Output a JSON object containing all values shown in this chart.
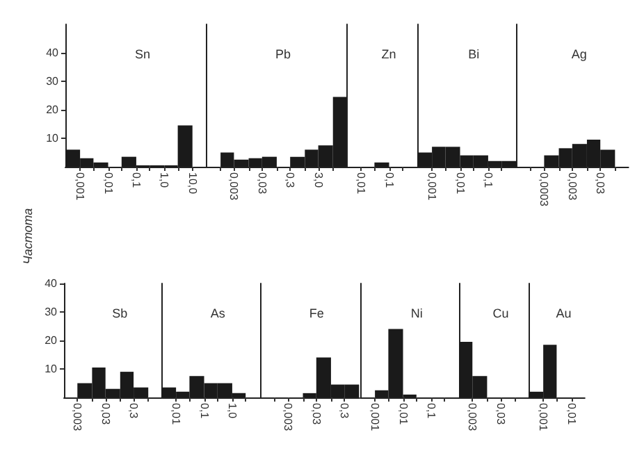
{
  "chart_data": [
    {
      "type": "histogram",
      "title": "Sn",
      "log": "x",
      "color": "#1a1a1a",
      "xlim": [
        0.0003,
        30
      ],
      "ylim": [
        0,
        50
      ],
      "yticks": [
        10,
        20,
        30,
        40
      ],
      "bins": [
        0.0003,
        0.001,
        0.003,
        0.01,
        0.03,
        0.1,
        0.3,
        1,
        3,
        10
      ],
      "values": [
        6,
        3,
        1.5,
        0,
        3.5,
        0.5,
        0.5,
        0.5,
        14.5
      ],
      "xticks": [
        {
          "value": 0.001,
          "label": "0,001"
        },
        {
          "value": 0.003,
          "label": null
        },
        {
          "value": 0.01,
          "label": "0,01"
        },
        {
          "value": 0.03,
          "label": null
        },
        {
          "value": 0.1,
          "label": "0,1"
        },
        {
          "value": 0.3,
          "label": null
        },
        {
          "value": 1,
          "label": "1,0"
        },
        {
          "value": 3,
          "label": null
        },
        {
          "value": 10,
          "label": "10,0"
        }
      ]
    },
    {
      "type": "histogram",
      "title": "Pb",
      "log": "x",
      "color": "#1a1a1a",
      "tick_labels": "x",
      "xlim": [
        0.0003,
        30
      ],
      "ylim": [
        0,
        50
      ],
      "bins": [
        0.001,
        0.003,
        0.01,
        0.03,
        0.1,
        0.3,
        1,
        3,
        10,
        30
      ],
      "values": [
        5,
        2.5,
        3,
        3.5,
        0,
        3.5,
        6,
        7.5,
        24.5
      ],
      "xticks": [
        {
          "value": 0.001,
          "label": null
        },
        {
          "value": 0.003,
          "label": "0,003"
        },
        {
          "value": 0.01,
          "label": null
        },
        {
          "value": 0.03,
          "label": "0,03"
        },
        {
          "value": 0.1,
          "label": null
        },
        {
          "value": 0.3,
          "label": "0,3"
        },
        {
          "value": 1,
          "label": null
        },
        {
          "value": 3,
          "label": "3,0"
        },
        {
          "value": 10,
          "label": null
        }
      ]
    },
    {
      "type": "histogram",
      "title": "Zn",
      "log": "x",
      "color": "#1a1a1a",
      "tick_labels": "x",
      "xlim": [
        0.003,
        1
      ],
      "ylim": [
        0,
        50
      ],
      "bins": [
        0.03,
        0.1
      ],
      "values": [
        1.5
      ],
      "xticks": [
        {
          "value": 0.01,
          "label": "0,01"
        },
        {
          "value": 0.03,
          "label": null
        },
        {
          "value": 0.1,
          "label": "0,1"
        },
        {
          "value": 0.3,
          "label": null
        }
      ]
    },
    {
      "type": "histogram",
      "title": "Bi",
      "log": "x",
      "color": "#1a1a1a",
      "tick_labels": "x",
      "xlim": [
        0.0003,
        1
      ],
      "ylim": [
        0,
        50
      ],
      "bins": [
        0.0003,
        0.001,
        0.003,
        0.01,
        0.03,
        0.1,
        0.3,
        1
      ],
      "values": [
        5,
        7,
        7,
        4,
        4,
        2,
        2
      ],
      "xticks": [
        {
          "value": 0.001,
          "label": "0,001"
        },
        {
          "value": 0.003,
          "label": null
        },
        {
          "value": 0.01,
          "label": "0,01"
        },
        {
          "value": 0.03,
          "label": null
        },
        {
          "value": 0.1,
          "label": "0,1"
        },
        {
          "value": 0.3,
          "label": null
        }
      ]
    },
    {
      "type": "histogram",
      "title": "Ag",
      "log": "x",
      "color": "#1a1a1a",
      "tick_labels": "x",
      "xlim": [
        3e-05,
        0.3
      ],
      "ylim": [
        0,
        50
      ],
      "bins": [
        0.0003,
        0.001,
        0.003,
        0.01,
        0.03,
        0.1
      ],
      "values": [
        4,
        6.5,
        8,
        9.5,
        6
      ],
      "xticks": [
        {
          "value": 0.0001,
          "label": null
        },
        {
          "value": 0.0003,
          "label": "0,0003"
        },
        {
          "value": 0.001,
          "label": null
        },
        {
          "value": 0.003,
          "label": "0,003"
        },
        {
          "value": 0.01,
          "label": null
        },
        {
          "value": 0.03,
          "label": "0,03"
        },
        {
          "value": 0.1,
          "label": null
        }
      ]
    },
    {
      "type": "histogram",
      "title": "Sb",
      "ylabel": "Частота",
      "log": "x",
      "color": "#1a1a1a",
      "xlim": [
        0.001,
        3
      ],
      "ylim": [
        0,
        40
      ],
      "yticks": [
        10,
        20,
        30,
        40
      ],
      "bins": [
        0.003,
        0.01,
        0.03,
        0.1,
        0.3,
        1
      ],
      "values": [
        5,
        10.5,
        3,
        9,
        3.5
      ],
      "xticks": [
        {
          "value": 0.003,
          "label": "0,003"
        },
        {
          "value": 0.01,
          "label": null
        },
        {
          "value": 0.03,
          "label": "0,03"
        },
        {
          "value": 0.1,
          "label": null
        },
        {
          "value": 0.3,
          "label": "0,3"
        },
        {
          "value": 1,
          "label": null
        }
      ]
    },
    {
      "type": "histogram",
      "title": "As",
      "log": "x",
      "color": "#1a1a1a",
      "tick_labels": "x",
      "xlim": [
        0.003,
        10
      ],
      "ylim": [
        0,
        40
      ],
      "bins": [
        0.003,
        0.01,
        0.03,
        0.1,
        0.3,
        1,
        3
      ],
      "values": [
        3.5,
        2,
        7.5,
        5,
        5,
        1.5
      ],
      "xticks": [
        {
          "value": 0.01,
          "label": "0,01"
        },
        {
          "value": 0.03,
          "label": null
        },
        {
          "value": 0.1,
          "label": "0,1"
        },
        {
          "value": 0.3,
          "label": null
        },
        {
          "value": 1,
          "label": "1,0"
        },
        {
          "value": 3,
          "label": null
        }
      ]
    },
    {
      "type": "histogram",
      "title": "Fe",
      "log": "x",
      "color": "#1a1a1a",
      "tick_labels": "x",
      "xlim": [
        0.0003,
        1
      ],
      "ylim": [
        0,
        40
      ],
      "bins": [
        0.01,
        0.03,
        0.1,
        0.3,
        1
      ],
      "values": [
        1.5,
        14,
        4.5,
        4.5
      ],
      "xticks": [
        {
          "value": 0.001,
          "label": null
        },
        {
          "value": 0.003,
          "label": "0,003"
        },
        {
          "value": 0.01,
          "label": null
        },
        {
          "value": 0.03,
          "label": "0,03"
        },
        {
          "value": 0.1,
          "label": null
        },
        {
          "value": 0.3,
          "label": "0,3"
        }
      ]
    },
    {
      "type": "histogram",
      "title": "Ni",
      "log": "x",
      "color": "#1a1a1a",
      "tick_labels": "x",
      "xlim": [
        0.0003,
        1
      ],
      "ylim": [
        0,
        40
      ],
      "bins": [
        0.001,
        0.003,
        0.01,
        0.03
      ],
      "values": [
        2.5,
        24,
        1
      ],
      "xticks": [
        {
          "value": 0.001,
          "label": "0,001"
        },
        {
          "value": 0.003,
          "label": null
        },
        {
          "value": 0.01,
          "label": "0,01"
        },
        {
          "value": 0.03,
          "label": null
        },
        {
          "value": 0.1,
          "label": "0,1"
        },
        {
          "value": 0.3,
          "label": null
        }
      ]
    },
    {
      "type": "histogram",
      "title": "Cu",
      "log": "x",
      "color": "#1a1a1a",
      "tick_labels": "x",
      "xlim": [
        0.001,
        0.3
      ],
      "ylim": [
        0,
        40
      ],
      "bins": [
        0.001,
        0.003,
        0.01
      ],
      "values": [
        19.5,
        7.5
      ],
      "xticks": [
        {
          "value": 0.003,
          "label": "0,003"
        },
        {
          "value": 0.01,
          "label": null
        },
        {
          "value": 0.03,
          "label": "0,03"
        },
        {
          "value": 0.1,
          "label": null
        }
      ]
    },
    {
      "type": "histogram",
      "title": "Au",
      "log": "x",
      "color": "#1a1a1a",
      "tick_labels": "x",
      "xlim": [
        0.0003,
        0.03
      ],
      "ylim": [
        0,
        40
      ],
      "bins": [
        0.0003,
        0.001,
        0.003
      ],
      "values": [
        2,
        18.5
      ],
      "xticks": [
        {
          "value": 0.001,
          "label": "0,001"
        },
        {
          "value": 0.003,
          "label": null
        },
        {
          "value": 0.01,
          "label": "0,01"
        }
      ]
    }
  ]
}
